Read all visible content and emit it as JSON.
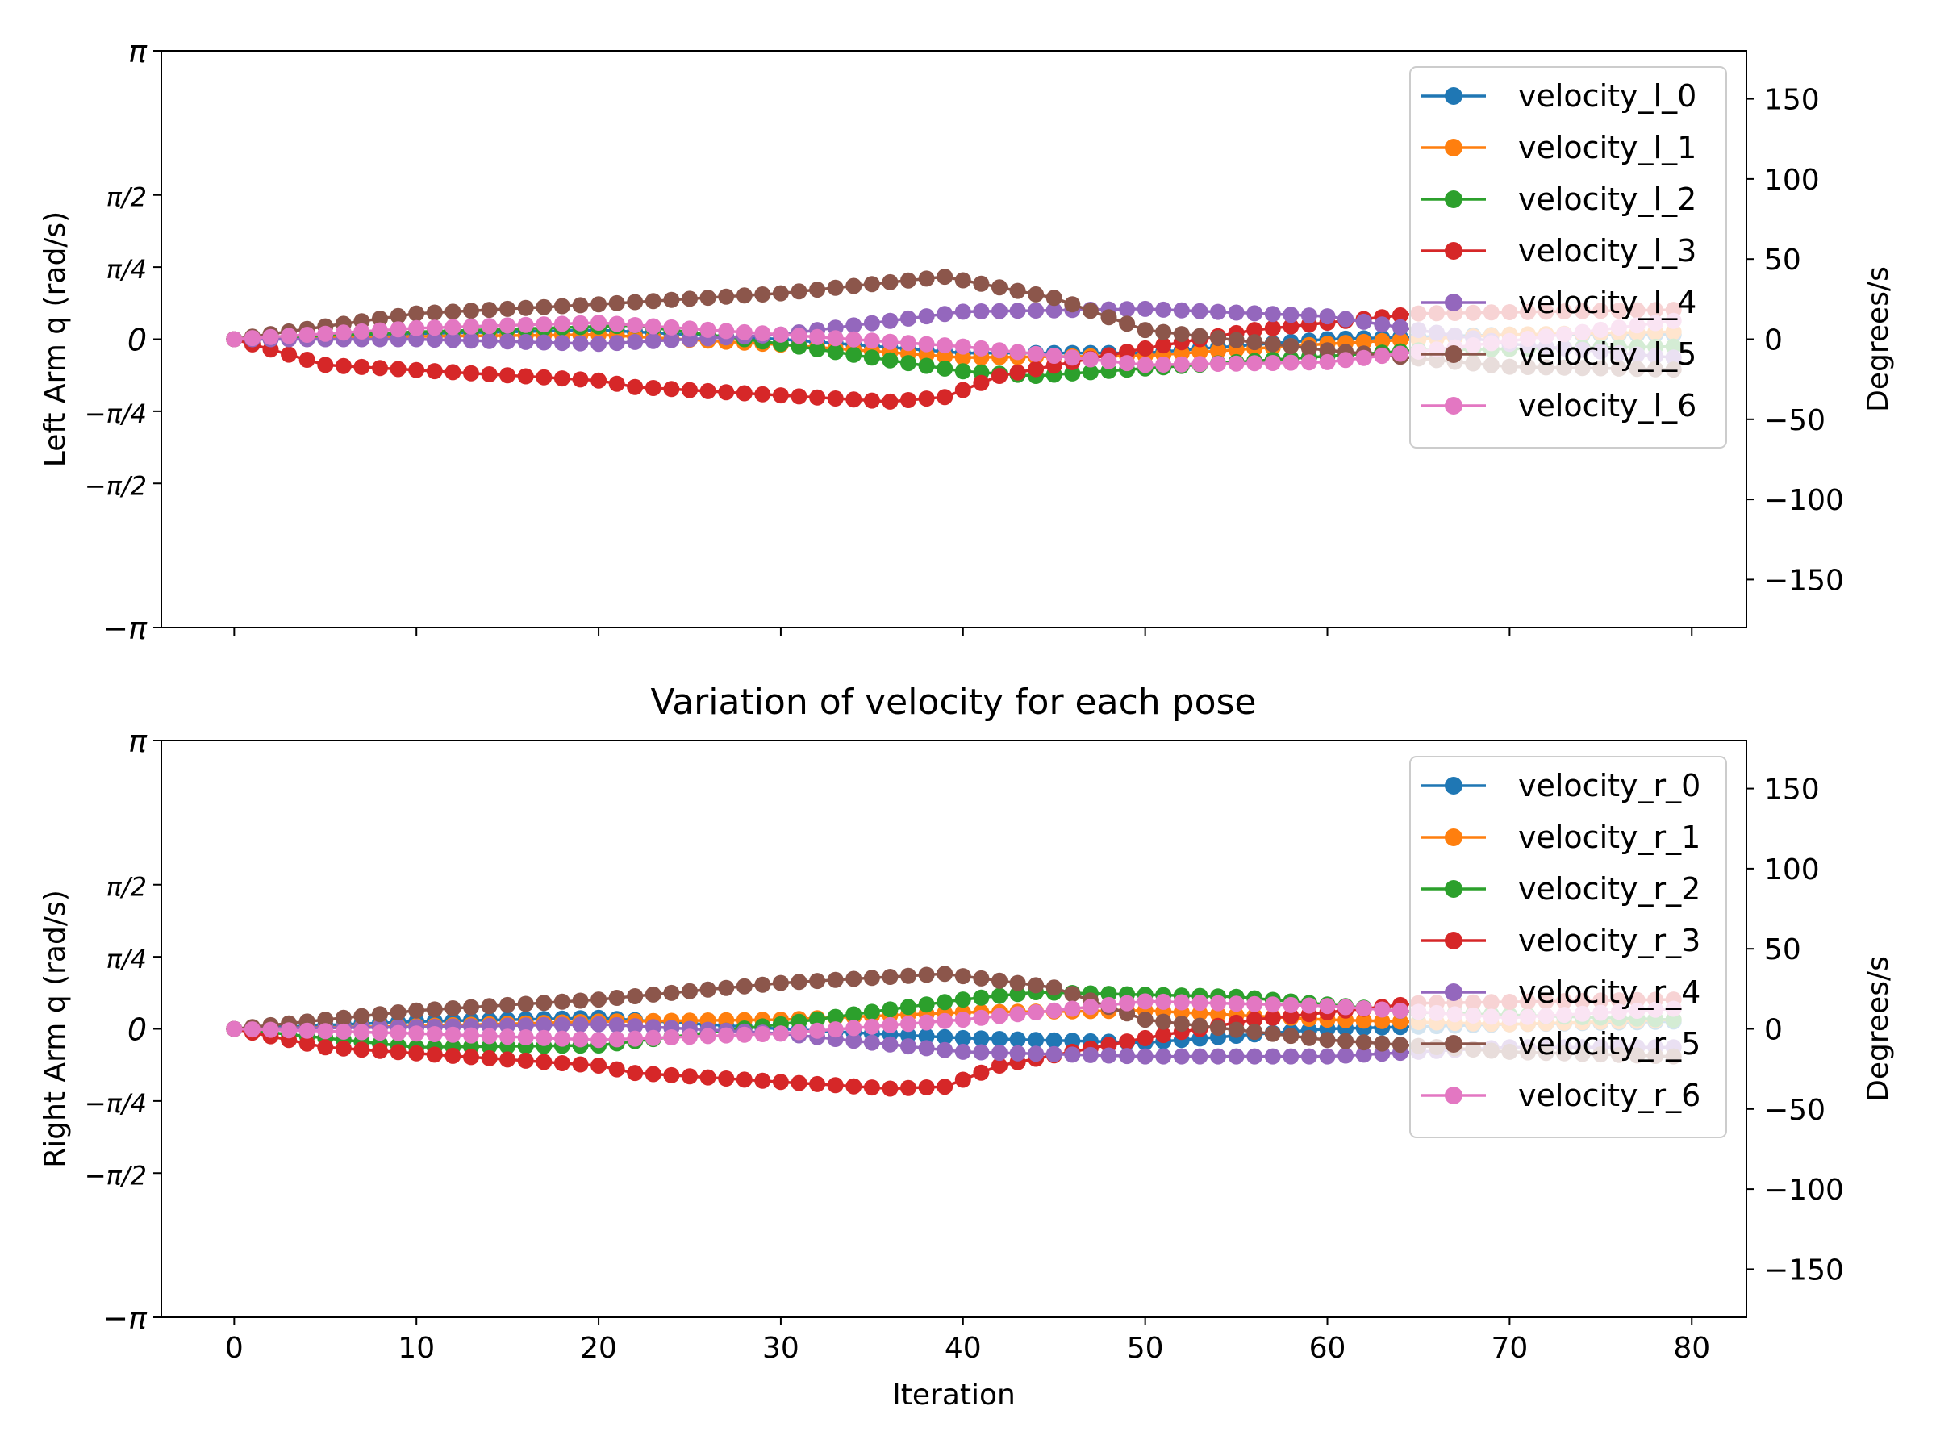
{
  "figure": {
    "suptitle": "Variation of velocity for each pose"
  },
  "colors": [
    "#1f77b4",
    "#ff7f0e",
    "#2ca02c",
    "#d62728",
    "#9467bd",
    "#8c564b",
    "#e377c2"
  ],
  "chart_data": [
    {
      "type": "line",
      "ylabel": "Left Arm q (rad/s)",
      "ylabel_right": "Degrees/s",
      "xlabel": "",
      "xlim": [
        -4,
        83
      ],
      "ylim": [
        -3.14159,
        3.14159
      ],
      "ylim_right": [
        -180,
        180
      ],
      "x_ticks": [
        "0",
        "10",
        "20",
        "30",
        "40",
        "50",
        "60",
        "70",
        "80"
      ],
      "y_ticks": [
        "π",
        "π/2",
        "π/4",
        "0",
        "−π/4",
        "−π/2",
        "−π"
      ],
      "y_right_ticks": [
        "150",
        "100",
        "50",
        "0",
        "−50",
        "−100",
        "−150"
      ],
      "legend_position": "upper right",
      "grid": false,
      "series": [
        {
          "name": "velocity_l_0",
          "keys": [
            [
              0,
              0
            ],
            [
              10,
              0.06
            ],
            [
              20,
              0.1
            ],
            [
              30,
              0
            ],
            [
              40,
              -0.15
            ],
            [
              50,
              -0.15
            ],
            [
              60,
              0
            ],
            [
              70,
              0.05
            ],
            [
              79,
              0.05
            ]
          ]
        },
        {
          "name": "velocity_l_1",
          "keys": [
            [
              0,
              0
            ],
            [
              10,
              0.03
            ],
            [
              20,
              0.05
            ],
            [
              30,
              -0.06
            ],
            [
              40,
              -0.2
            ],
            [
              50,
              -0.18
            ],
            [
              60,
              -0.05
            ],
            [
              70,
              0.05
            ],
            [
              79,
              0.08
            ]
          ]
        },
        {
          "name": "velocity_l_2",
          "keys": [
            [
              0,
              0
            ],
            [
              10,
              0.08
            ],
            [
              22,
              0.15
            ],
            [
              30,
              -0.05
            ],
            [
              40,
              -0.35
            ],
            [
              44,
              -0.4
            ],
            [
              55,
              -0.25
            ],
            [
              65,
              -0.12
            ],
            [
              79,
              -0.08
            ]
          ]
        },
        {
          "name": "velocity_l_3",
          "keys": [
            [
              0,
              0
            ],
            [
              5,
              -0.28
            ],
            [
              20,
              -0.45
            ],
            [
              22,
              -0.52
            ],
            [
              36,
              -0.68
            ],
            [
              39,
              -0.63
            ],
            [
              42,
              -0.4
            ],
            [
              50,
              -0.1
            ],
            [
              56,
              0.1
            ],
            [
              65,
              0.28
            ],
            [
              79,
              0.32
            ]
          ]
        },
        {
          "name": "velocity_l_4",
          "keys": [
            [
              0,
              0
            ],
            [
              10,
              0
            ],
            [
              20,
              -0.05
            ],
            [
              30,
              0.05
            ],
            [
              40,
              0.3
            ],
            [
              50,
              0.33
            ],
            [
              60,
              0.25
            ],
            [
              70,
              -0.05
            ],
            [
              79,
              -0.2
            ]
          ]
        },
        {
          "name": "velocity_l_5",
          "keys": [
            [
              0,
              0
            ],
            [
              10,
              0.28
            ],
            [
              20,
              0.38
            ],
            [
              30,
              0.5
            ],
            [
              39,
              0.68
            ],
            [
              45,
              0.45
            ],
            [
              50,
              0.1
            ],
            [
              60,
              -0.12
            ],
            [
              70,
              -0.3
            ],
            [
              79,
              -0.33
            ]
          ]
        },
        {
          "name": "velocity_l_6",
          "keys": [
            [
              0,
              0
            ],
            [
              10,
              0.12
            ],
            [
              20,
              0.18
            ],
            [
              30,
              0.05
            ],
            [
              40,
              -0.08
            ],
            [
              50,
              -0.28
            ],
            [
              60,
              -0.25
            ],
            [
              70,
              -0.02
            ],
            [
              79,
              0.2
            ]
          ]
        }
      ]
    },
    {
      "type": "line",
      "ylabel": "Right Arm q (rad/s)",
      "ylabel_right": "Degrees/s",
      "xlabel": "Iteration",
      "xlim": [
        -4,
        83
      ],
      "ylim": [
        -3.14159,
        3.14159
      ],
      "ylim_right": [
        -180,
        180
      ],
      "x_ticks": [
        "0",
        "10",
        "20",
        "30",
        "40",
        "50",
        "60",
        "70",
        "80"
      ],
      "y_ticks": [
        "π",
        "π/2",
        "π/4",
        "0",
        "−π/4",
        "−π/2",
        "−π"
      ],
      "y_right_ticks": [
        "150",
        "100",
        "50",
        "0",
        "−50",
        "−100",
        "−150"
      ],
      "legend_position": "upper right",
      "grid": false,
      "series": [
        {
          "name": "velocity_r_0",
          "keys": [
            [
              0,
              0
            ],
            [
              10,
              0.08
            ],
            [
              20,
              0.12
            ],
            [
              30,
              0
            ],
            [
              40,
              -0.1
            ],
            [
              50,
              -0.15
            ],
            [
              60,
              0
            ],
            [
              70,
              0.05
            ],
            [
              79,
              0.08
            ]
          ]
        },
        {
          "name": "velocity_r_1",
          "keys": [
            [
              0,
              0
            ],
            [
              10,
              0.03
            ],
            [
              20,
              0.08
            ],
            [
              30,
              0.1
            ],
            [
              40,
              0.18
            ],
            [
              50,
              0.2
            ],
            [
              60,
              0.1
            ],
            [
              70,
              0.05
            ],
            [
              79,
              0.1
            ]
          ]
        },
        {
          "name": "velocity_r_2",
          "keys": [
            [
              0,
              0
            ],
            [
              10,
              -0.2
            ],
            [
              20,
              -0.18
            ],
            [
              30,
              0.05
            ],
            [
              40,
              0.32
            ],
            [
              44,
              0.4
            ],
            [
              55,
              0.35
            ],
            [
              65,
              0.18
            ],
            [
              79,
              0.1
            ]
          ]
        },
        {
          "name": "velocity_r_3",
          "keys": [
            [
              0,
              0
            ],
            [
              5,
              -0.2
            ],
            [
              20,
              -0.4
            ],
            [
              22,
              -0.48
            ],
            [
              36,
              -0.65
            ],
            [
              39,
              -0.63
            ],
            [
              42,
              -0.4
            ],
            [
              50,
              -0.1
            ],
            [
              56,
              0.1
            ],
            [
              65,
              0.28
            ],
            [
              79,
              0.32
            ]
          ]
        },
        {
          "name": "velocity_r_4",
          "keys": [
            [
              0,
              0
            ],
            [
              10,
              0.02
            ],
            [
              20,
              0.05
            ],
            [
              30,
              -0.05
            ],
            [
              40,
              -0.25
            ],
            [
              50,
              -0.3
            ],
            [
              60,
              -0.3
            ],
            [
              70,
              -0.2
            ],
            [
              79,
              -0.2
            ]
          ]
        },
        {
          "name": "velocity_r_5",
          "keys": [
            [
              0,
              0
            ],
            [
              10,
              0.2
            ],
            [
              20,
              0.32
            ],
            [
              30,
              0.5
            ],
            [
              39,
              0.6
            ],
            [
              45,
              0.45
            ],
            [
              50,
              0.1
            ],
            [
              60,
              -0.12
            ],
            [
              70,
              -0.25
            ],
            [
              79,
              -0.3
            ]
          ]
        },
        {
          "name": "velocity_r_6",
          "keys": [
            [
              0,
              0
            ],
            [
              10,
              -0.05
            ],
            [
              20,
              -0.12
            ],
            [
              30,
              -0.05
            ],
            [
              40,
              0.1
            ],
            [
              50,
              0.3
            ],
            [
              60,
              0.25
            ],
            [
              70,
              0.12
            ],
            [
              79,
              0.22
            ]
          ]
        }
      ]
    }
  ]
}
